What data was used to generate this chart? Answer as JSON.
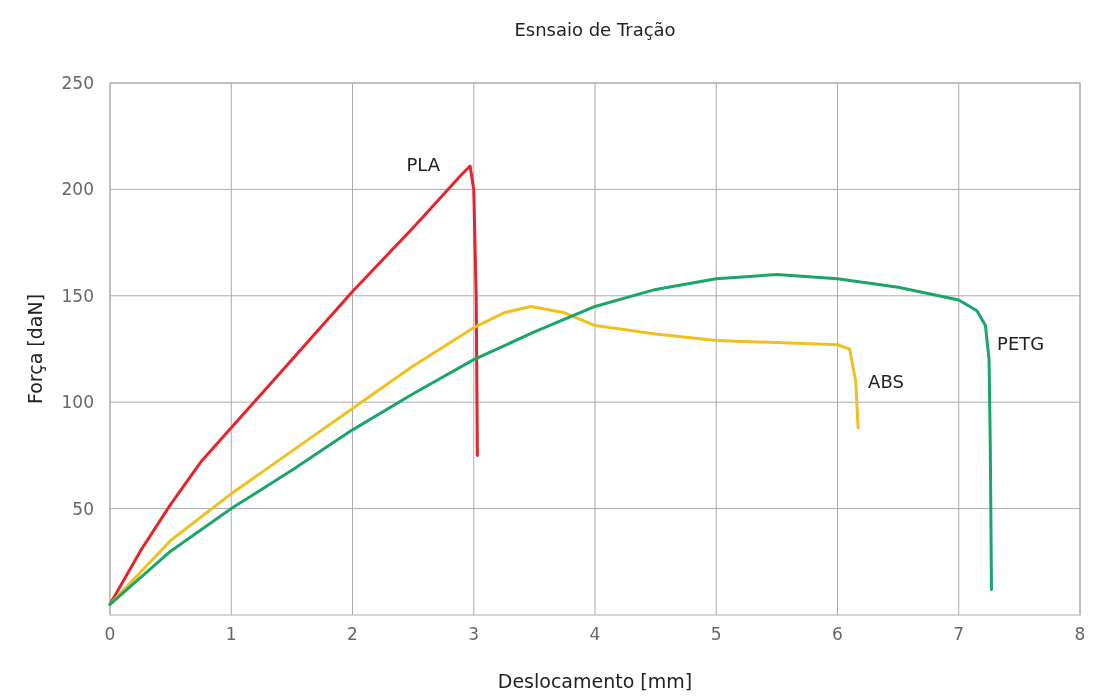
{
  "chart_data": {
    "type": "line",
    "title": "Esnsaio de Tração",
    "xlabel": "Deslocamento [mm]",
    "ylabel": "Força [daN]",
    "xlim": [
      0,
      8
    ],
    "xticks": [
      0,
      1,
      2,
      3,
      4,
      5,
      6,
      7,
      8
    ],
    "ylim": [
      0,
      250
    ],
    "yticks": [
      50,
      100,
      150,
      200,
      250
    ],
    "grid": true,
    "legend": false,
    "line_style": "solid",
    "marker": "none",
    "series": [
      {
        "name": "PLA",
        "color": "#e8232a",
        "x": [
          0,
          0.25,
          0.5,
          0.75,
          1,
          1.5,
          2,
          2.5,
          2.9,
          2.97,
          3,
          3.02,
          3.03
        ],
        "values": [
          5,
          30,
          52,
          72,
          88,
          120,
          152,
          182,
          207,
          211,
          200,
          150,
          75
        ]
      },
      {
        "name": "ABS",
        "color": "#f0c020",
        "x": [
          0,
          0.5,
          1,
          1.5,
          2,
          2.5,
          3,
          3.25,
          3.47,
          3.75,
          4,
          4.5,
          5,
          5.5,
          6,
          6.1,
          6.15,
          6.17
        ],
        "values": [
          5,
          35,
          57,
          77,
          97,
          117,
          135,
          142,
          145,
          142,
          136,
          132,
          129,
          128,
          127,
          125,
          110,
          88
        ]
      },
      {
        "name": "PETG",
        "color": "#1aa56a",
        "x": [
          0,
          0.5,
          1,
          1.5,
          2,
          2.5,
          3,
          3.5,
          4,
          4.5,
          5,
          5.5,
          6,
          6.5,
          7,
          7.15,
          7.22,
          7.25,
          7.26,
          7.27
        ],
        "values": [
          5,
          30,
          50,
          68,
          87,
          104,
          120,
          133,
          145,
          153,
          158,
          160,
          158,
          154,
          148,
          143,
          136,
          120,
          80,
          12
        ]
      }
    ]
  }
}
